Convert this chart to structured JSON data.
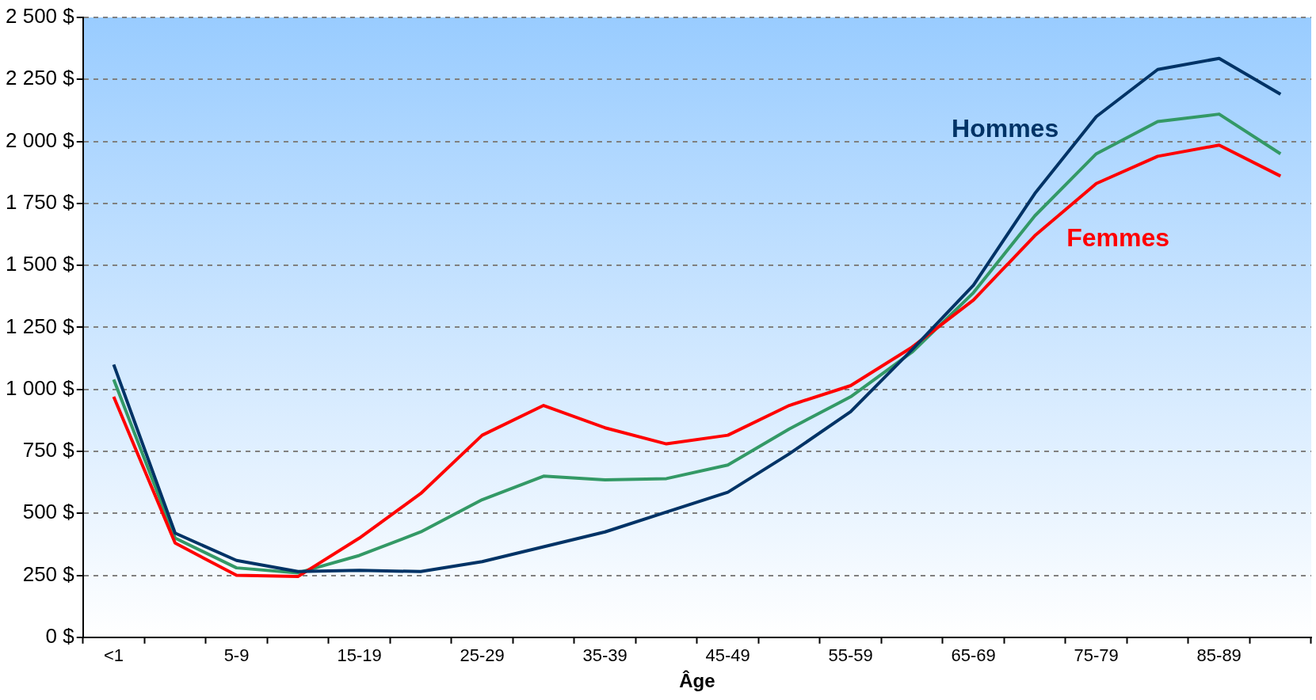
{
  "chart_data": {
    "type": "line",
    "xlabel": "Âge",
    "categories": [
      "<1",
      null,
      "5-9",
      null,
      "15-19",
      null,
      "25-29",
      null,
      "35-39",
      null,
      "45-49",
      null,
      "55-59",
      null,
      "65-69",
      null,
      "75-79",
      null,
      "85-89",
      null
    ],
    "series": [
      {
        "name": "Hommes",
        "color": "#003366",
        "values": [
          1100,
          420,
          310,
          265,
          270,
          265,
          305,
          365,
          425,
          505,
          585,
          740,
          910,
          1160,
          1420,
          1790,
          2100,
          2290,
          2335,
          2190
        ]
      },
      {
        "name": "Femmes",
        "color": "#ff0000",
        "values": [
          970,
          380,
          250,
          245,
          400,
          580,
          815,
          935,
          845,
          780,
          815,
          935,
          1015,
          1170,
          1360,
          1620,
          1830,
          1940,
          1985,
          1860
        ]
      },
      {
        "color": "#339966",
        "values": [
          1040,
          400,
          280,
          260,
          330,
          425,
          555,
          650,
          635,
          640,
          695,
          840,
          970,
          1150,
          1390,
          1700,
          1950,
          2080,
          2110,
          1950
        ]
      }
    ],
    "ylim": [
      0,
      2500
    ],
    "yticks": [
      {
        "value": 0,
        "label": "0 $"
      },
      {
        "value": 250,
        "label": "250 $"
      },
      {
        "value": 500,
        "label": "500 $"
      },
      {
        "value": 750,
        "label": "750 $"
      },
      {
        "value": 1000,
        "label": "1 000 $"
      },
      {
        "value": 1250,
        "label": "1 250 $"
      },
      {
        "value": 1500,
        "label": "1 500 $"
      },
      {
        "value": 1750,
        "label": "1 750 $"
      },
      {
        "value": 2000,
        "label": "2 000 $"
      },
      {
        "value": 2250,
        "label": "2 250 $"
      },
      {
        "value": 2500,
        "label": "2 500 $"
      }
    ],
    "grid": "y",
    "legend": false,
    "marker": "none",
    "line_style": "solid"
  }
}
